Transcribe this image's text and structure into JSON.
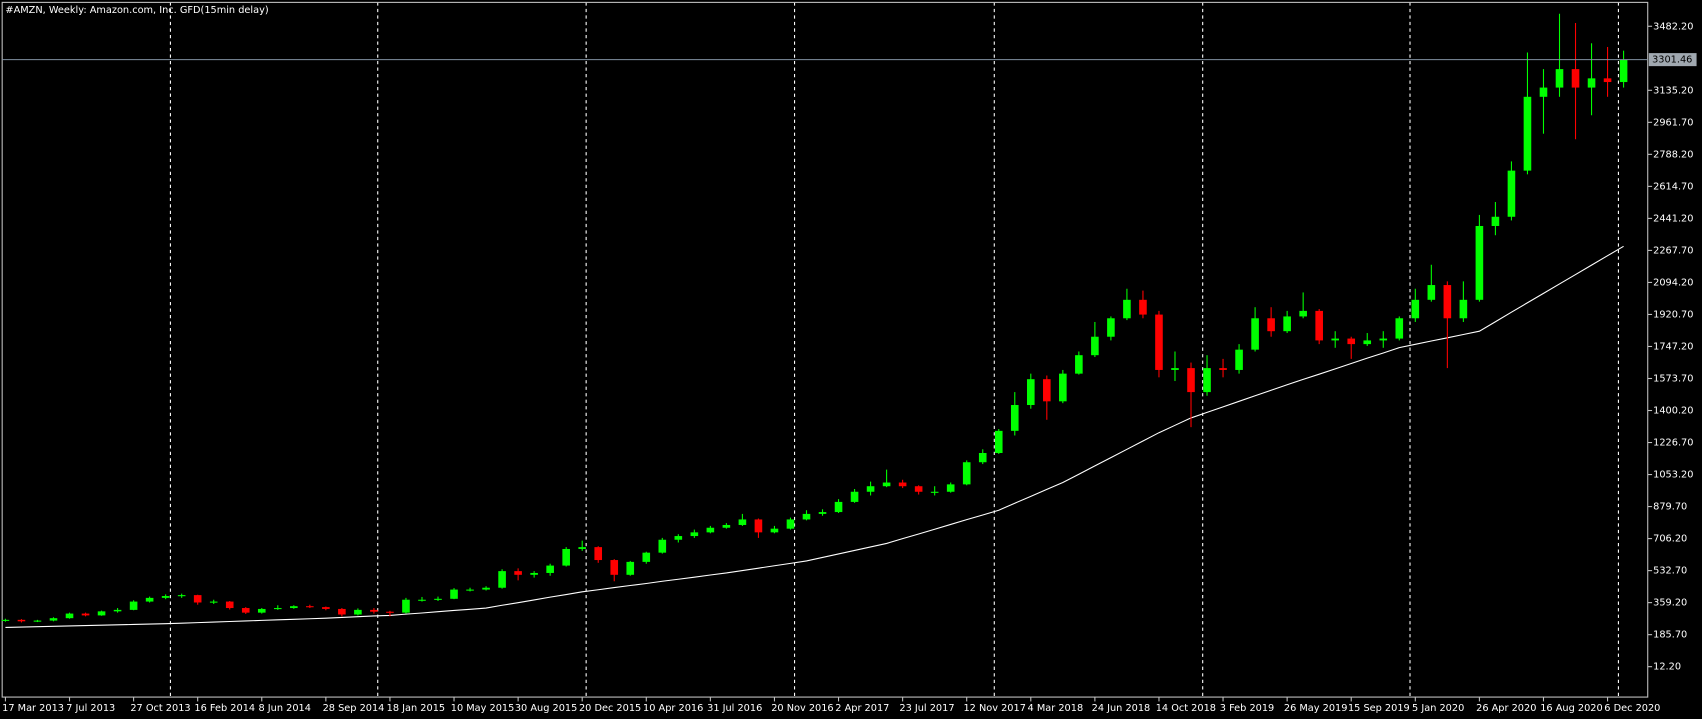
{
  "chart_data": {
    "type": "candlestick",
    "title": "#AMZN, Weekly:  Amazon.com, Inc. GFD(15min delay)",
    "up_color": "#00ff00",
    "down_color": "#ff0000",
    "categories": [
      "17 Mar 2013",
      null,
      null,
      null,
      "7 Jul 2013",
      null,
      null,
      null,
      "27 Oct 2013",
      null,
      null,
      null,
      "16 Feb 2014",
      null,
      null,
      null,
      "8 Jun 2014",
      null,
      null,
      null,
      "28 Sep 2014",
      null,
      null,
      null,
      "18 Jan 2015",
      null,
      null,
      null,
      "10 May 2015",
      null,
      null,
      null,
      "30 Aug 2015",
      null,
      null,
      null,
      "20 Dec 2015",
      null,
      null,
      null,
      "10 Apr 2016",
      null,
      null,
      null,
      "31 Jul 2016",
      null,
      null,
      null,
      "20 Nov 2016",
      null,
      null,
      null,
      "2 Apr 2017",
      null,
      null,
      null,
      "23 Jul 2017",
      null,
      null,
      null,
      "12 Nov 2017",
      null,
      null,
      null,
      "4 Mar 2018",
      null,
      null,
      null,
      "24 Jun 2018",
      null,
      null,
      null,
      "14 Oct 2018",
      null,
      null,
      null,
      "3 Feb 2019",
      null,
      null,
      null,
      "26 May 2019",
      null,
      null,
      null,
      "15 Sep 2019",
      null,
      null,
      null,
      "5 Jan 2020",
      null,
      null,
      null,
      "26 Apr 2020",
      null,
      null,
      null,
      "16 Aug 2020",
      null,
      null,
      null,
      "6 Dec 2020",
      null
    ],
    "ohlc": [
      [
        262,
        272,
        256,
        266
      ],
      [
        266,
        270,
        252,
        258
      ],
      [
        258,
        266,
        254,
        262
      ],
      [
        262,
        280,
        258,
        275
      ],
      [
        275,
        305,
        272,
        300
      ],
      [
        300,
        305,
        285,
        290
      ],
      [
        290,
        316,
        288,
        312
      ],
      [
        312,
        330,
        305,
        320
      ],
      [
        320,
        372,
        318,
        365
      ],
      [
        365,
        392,
        360,
        385
      ],
      [
        385,
        404,
        378,
        395
      ],
      [
        395,
        408,
        385,
        400
      ],
      [
        400,
        402,
        348,
        360
      ],
      [
        360,
        375,
        352,
        365
      ],
      [
        365,
        368,
        322,
        330
      ],
      [
        330,
        335,
        298,
        305
      ],
      [
        305,
        330,
        300,
        325
      ],
      [
        325,
        345,
        320,
        330
      ],
      [
        330,
        345,
        326,
        340
      ],
      [
        340,
        348,
        330,
        335
      ],
      [
        335,
        338,
        318,
        325
      ],
      [
        325,
        330,
        285,
        295
      ],
      [
        295,
        328,
        290,
        320
      ],
      [
        320,
        330,
        300,
        310
      ],
      [
        310,
        315,
        285,
        305
      ],
      [
        305,
        385,
        300,
        375
      ],
      [
        375,
        390,
        365,
        375
      ],
      [
        375,
        392,
        368,
        380
      ],
      [
        380,
        438,
        378,
        430
      ],
      [
        430,
        440,
        420,
        430
      ],
      [
        430,
        448,
        425,
        440
      ],
      [
        440,
        540,
        435,
        530
      ],
      [
        530,
        545,
        480,
        510
      ],
      [
        510,
        530,
        495,
        520
      ],
      [
        520,
        570,
        505,
        560
      ],
      [
        560,
        660,
        555,
        650
      ],
      [
        650,
        695,
        640,
        660
      ],
      [
        660,
        665,
        575,
        590
      ],
      [
        590,
        595,
        475,
        510
      ],
      [
        510,
        585,
        505,
        580
      ],
      [
        580,
        635,
        570,
        630
      ],
      [
        630,
        710,
        625,
        700
      ],
      [
        700,
        730,
        685,
        720
      ],
      [
        720,
        755,
        710,
        740
      ],
      [
        740,
        775,
        735,
        765
      ],
      [
        765,
        790,
        760,
        780
      ],
      [
        780,
        840,
        775,
        810
      ],
      [
        810,
        815,
        710,
        740
      ],
      [
        740,
        775,
        735,
        760
      ],
      [
        760,
        820,
        755,
        810
      ],
      [
        810,
        860,
        805,
        840
      ],
      [
        840,
        865,
        830,
        850
      ],
      [
        850,
        920,
        845,
        905
      ],
      [
        905,
        975,
        900,
        960
      ],
      [
        960,
        1015,
        940,
        990
      ],
      [
        990,
        1080,
        985,
        1010
      ],
      [
        1010,
        1025,
        980,
        990
      ],
      [
        990,
        995,
        945,
        960
      ],
      [
        960,
        990,
        940,
        960
      ],
      [
        960,
        1010,
        955,
        1000
      ],
      [
        1000,
        1130,
        995,
        1120
      ],
      [
        1120,
        1190,
        1110,
        1170
      ],
      [
        1170,
        1300,
        1165,
        1290
      ],
      [
        1290,
        1500,
        1265,
        1430
      ],
      [
        1430,
        1600,
        1410,
        1570
      ],
      [
        1570,
        1590,
        1350,
        1450
      ],
      [
        1450,
        1620,
        1440,
        1600
      ],
      [
        1600,
        1720,
        1595,
        1700
      ],
      [
        1700,
        1880,
        1690,
        1800
      ],
      [
        1800,
        1910,
        1780,
        1900
      ],
      [
        1900,
        2060,
        1890,
        2000
      ],
      [
        2000,
        2050,
        1900,
        1920
      ],
      [
        1920,
        1940,
        1580,
        1620
      ],
      [
        1620,
        1720,
        1560,
        1630
      ],
      [
        1630,
        1660,
        1310,
        1500
      ],
      [
        1500,
        1700,
        1480,
        1630
      ],
      [
        1630,
        1680,
        1580,
        1620
      ],
      [
        1620,
        1760,
        1600,
        1730
      ],
      [
        1730,
        1960,
        1720,
        1900
      ],
      [
        1900,
        1960,
        1800,
        1830
      ],
      [
        1830,
        1940,
        1820,
        1910
      ],
      [
        1910,
        2040,
        1900,
        1940
      ],
      [
        1940,
        1950,
        1760,
        1780
      ],
      [
        1780,
        1830,
        1740,
        1790
      ],
      [
        1790,
        1800,
        1680,
        1760
      ],
      [
        1760,
        1820,
        1750,
        1780
      ],
      [
        1780,
        1830,
        1740,
        1790
      ],
      [
        1790,
        1910,
        1780,
        1900
      ],
      [
        1900,
        2060,
        1880,
        2000
      ],
      [
        2000,
        2190,
        1990,
        2080
      ],
      [
        2080,
        2100,
        1630,
        1900
      ],
      [
        1900,
        2100,
        1880,
        2000
      ],
      [
        2000,
        2460,
        1990,
        2400
      ],
      [
        2400,
        2530,
        2350,
        2450
      ],
      [
        2450,
        2750,
        2430,
        2700
      ],
      [
        2700,
        3340,
        2680,
        3100
      ],
      [
        3100,
        3250,
        2900,
        3150
      ],
      [
        3150,
        3550,
        3100,
        3250
      ],
      [
        3250,
        3500,
        2870,
        3150
      ],
      [
        3150,
        3390,
        3000,
        3200
      ],
      [
        3200,
        3370,
        3100,
        3180
      ],
      [
        3180,
        3350,
        3150,
        3301.46
      ]
    ],
    "ma": {
      "color": "#ffffff",
      "values": [
        225,
        227,
        229,
        231,
        233,
        235,
        237,
        239,
        241,
        243,
        245,
        248,
        251,
        254,
        257,
        260,
        263,
        266,
        269,
        272,
        275,
        279,
        283,
        287,
        290,
        297,
        303,
        310,
        317,
        323,
        330,
        345,
        359,
        374,
        389,
        403,
        418,
        429,
        441,
        452,
        463,
        475,
        486,
        497,
        509,
        520,
        533,
        546,
        559,
        572,
        585,
        604,
        623,
        642,
        661,
        680,
        706,
        731,
        757,
        783,
        809,
        834,
        860,
        898,
        935,
        973,
        1010,
        1055,
        1100,
        1145,
        1190,
        1235,
        1280,
        1320,
        1360,
        1390,
        1420,
        1450,
        1480,
        1510,
        1540,
        1569,
        1597,
        1626,
        1655,
        1684,
        1712,
        1741,
        1759,
        1777,
        1794,
        1812,
        1830,
        1881,
        1933,
        1984,
        2035,
        2086,
        2137,
        2188,
        2239,
        2290
      ]
    },
    "current_price": {
      "value": 3301.46,
      "label": "3301.46"
    },
    "ylim": [
      -152.5,
      3611.6
    ],
    "yticks": [
      {
        "value": 12.2,
        "label": "12.20"
      },
      {
        "value": 185.7,
        "label": "185.70"
      },
      {
        "value": 359.2,
        "label": "359.20"
      },
      {
        "value": 532.7,
        "label": "532.70"
      },
      {
        "value": 706.2,
        "label": "706.20"
      },
      {
        "value": 879.7,
        "label": "879.70"
      },
      {
        "value": 1053.2,
        "label": "1053.20"
      },
      {
        "value": 1226.7,
        "label": "1226.70"
      },
      {
        "value": 1400.2,
        "label": "1400.20"
      },
      {
        "value": 1573.7,
        "label": "1573.70"
      },
      {
        "value": 1747.2,
        "label": "1747.20"
      },
      {
        "value": 1920.7,
        "label": "1920.70"
      },
      {
        "value": 2094.2,
        "label": "2094.20"
      },
      {
        "value": 2267.7,
        "label": "2267.70"
      },
      {
        "value": 2441.2,
        "label": "2441.20"
      },
      {
        "value": 2614.7,
        "label": "2614.70"
      },
      {
        "value": 2788.2,
        "label": "2788.20"
      },
      {
        "value": 2961.7,
        "label": "2961.70"
      },
      {
        "value": 3135.2,
        "label": "3135.20"
      },
      {
        "value": 3482.2,
        "label": "3482.20"
      }
    ]
  }
}
